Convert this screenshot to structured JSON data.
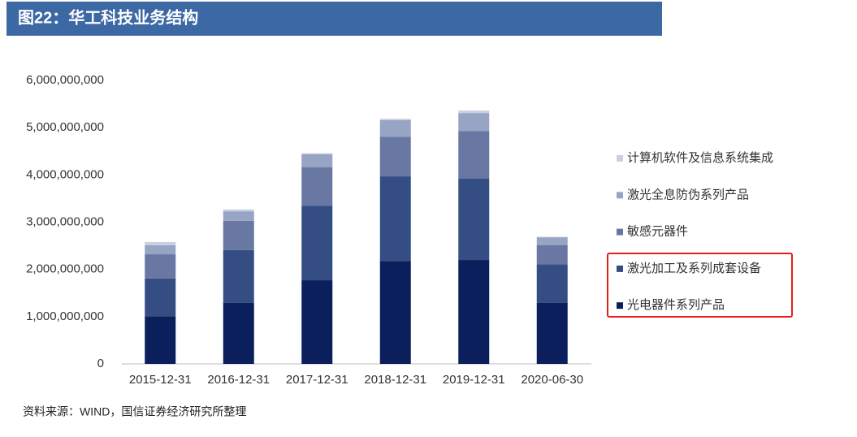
{
  "chart_data": {
    "type": "stacked_bar",
    "title": "图22：华工科技业务结构",
    "source": "资料来源：WIND，国信证券经济研究所整理",
    "categories": [
      "2015-12-31",
      "2016-12-31",
      "2017-12-31",
      "2018-12-31",
      "2019-12-31",
      "2020-06-30"
    ],
    "series": [
      {
        "name": "光电器件系列产品",
        "color": "#0b1f5c",
        "values": [
          1010000000,
          1290000000,
          1770000000,
          2180000000,
          2200000000,
          1290000000
        ]
      },
      {
        "name": "激光加工及系列成套设备",
        "color": "#344e84",
        "values": [
          800000000,
          1120000000,
          1580000000,
          1790000000,
          1720000000,
          820000000
        ]
      },
      {
        "name": "敏感元器件",
        "color": "#6878a3",
        "values": [
          510000000,
          620000000,
          810000000,
          840000000,
          1010000000,
          400000000
        ]
      },
      {
        "name": "激光全息防伪系列产品",
        "color": "#97a4c3",
        "values": [
          190000000,
          200000000,
          280000000,
          350000000,
          380000000,
          170000000
        ]
      },
      {
        "name": "计算机软件及信息系统集成",
        "color": "#c9d0e1",
        "values": [
          70000000,
          40000000,
          20000000,
          30000000,
          50000000,
          10000000
        ]
      }
    ],
    "ylim": [
      0,
      6000000000
    ],
    "yticks": [
      0,
      {
        "value": 1000000000,
        "label": "1,000,000,000"
      },
      {
        "value": 2000000000,
        "label": "2,000,000,000"
      },
      {
        "value": 3000000000,
        "label": "3,000,000,000"
      },
      {
        "value": 4000000000,
        "label": "4,000,000,000"
      },
      {
        "value": 5000000000,
        "label": "5,000,000,000"
      },
      {
        "value": 6000000000,
        "label": "6,000,000,000"
      }
    ],
    "grid": false
  }
}
